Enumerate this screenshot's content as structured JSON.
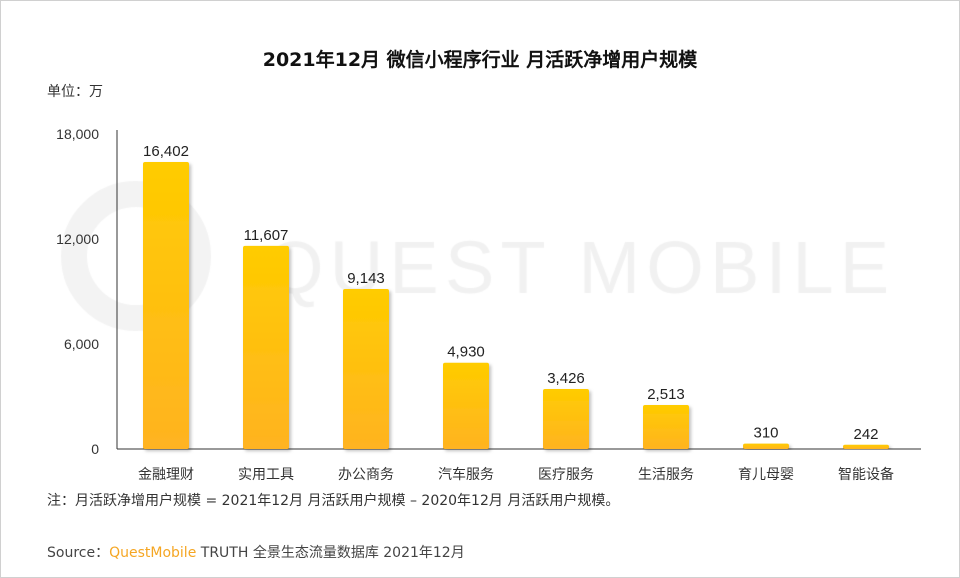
{
  "chart_data": {
    "type": "bar",
    "title": "2021年12月 微信小程序行业 月活跃净增用户规模",
    "unit_label": "单位：万",
    "categories": [
      "金融理财",
      "实用工具",
      "办公商务",
      "汽车服务",
      "医疗服务",
      "生活服务",
      "育儿母婴",
      "智能设备"
    ],
    "values": [
      16402,
      11607,
      9143,
      4930,
      3426,
      2513,
      310,
      242
    ],
    "value_labels": [
      "16,402",
      "11,607",
      "9,143",
      "4,930",
      "3,426",
      "2,513",
      "310",
      "242"
    ],
    "ylim": [
      0,
      18000
    ],
    "yticks": [
      0,
      6000,
      12000,
      18000
    ],
    "ytick_labels": [
      "0",
      "6,000",
      "12,000",
      "18,000"
    ],
    "grid": false,
    "colors": {
      "bar_top": "#FFCC00",
      "bar_bottom": "#FFB321",
      "label": "#222222"
    }
  },
  "watermark": "QUEST MOBILE",
  "note": "注：月活跃净增用户规模 = 2021年12月 月活跃用户规模 – 2020年12月 月活跃用户规模。",
  "source": {
    "prefix": "Source：",
    "brand": "QuestMobile",
    "rest": " TRUTH 全景生态流量数据库 2021年12月"
  }
}
